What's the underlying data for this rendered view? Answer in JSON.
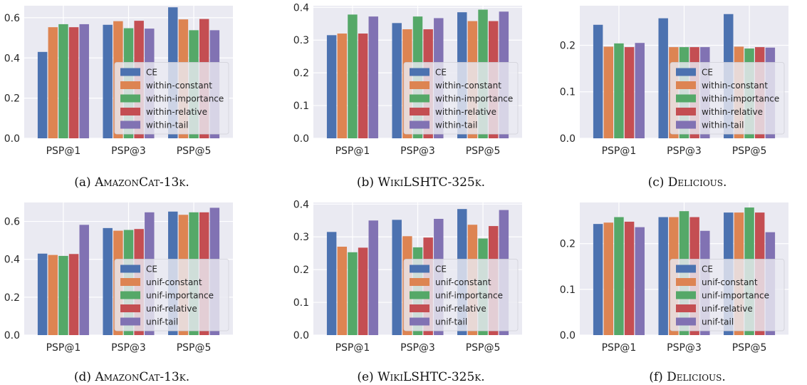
{
  "colors": {
    "CE": "#4c72b0",
    "constant": "#dd8452",
    "importance": "#55a868",
    "relative": "#c44e52",
    "tail": "#8172b3",
    "plot_background": "#eaeaf2",
    "grid": "#ffffff"
  },
  "chart_data": [
    {
      "type": "bar",
      "caption_prefix": "(a) ",
      "caption_name": "AmazonCat-13k",
      "caption_suffix": ".",
      "categories": [
        "PSP@1",
        "PSP@3",
        "PSP@5"
      ],
      "ylim": [
        0,
        0.66
      ],
      "yticks": [
        "0.0",
        "0.2",
        "0.4",
        "0.6"
      ],
      "legend_position": "lower-right",
      "series": [
        {
          "name": "CE",
          "values": [
            0.43,
            0.565,
            0.652
          ]
        },
        {
          "name": "within-constant",
          "values": [
            0.553,
            0.583,
            0.592
          ]
        },
        {
          "name": "within-importance",
          "values": [
            0.568,
            0.548,
            0.538
          ]
        },
        {
          "name": "within-relative",
          "values": [
            0.553,
            0.585,
            0.594
          ]
        },
        {
          "name": "within-tail",
          "values": [
            0.568,
            0.546,
            0.538
          ]
        }
      ]
    },
    {
      "type": "bar",
      "caption_prefix": "(b) ",
      "caption_name": "WikiLSHTC-325k",
      "caption_suffix": ".",
      "categories": [
        "PSP@1",
        "PSP@3",
        "PSP@5"
      ],
      "ylim": [
        0,
        0.405
      ],
      "yticks": [
        "0.0",
        "0.1",
        "0.2",
        "0.3",
        "0.4"
      ],
      "legend_position": "lower-right",
      "series": [
        {
          "name": "CE",
          "values": [
            0.315,
            0.352,
            0.385
          ]
        },
        {
          "name": "within-constant",
          "values": [
            0.32,
            0.333,
            0.358
          ]
        },
        {
          "name": "within-importance",
          "values": [
            0.378,
            0.372,
            0.393
          ]
        },
        {
          "name": "within-relative",
          "values": [
            0.32,
            0.333,
            0.358
          ]
        },
        {
          "name": "within-tail",
          "values": [
            0.372,
            0.367,
            0.387
          ]
        }
      ]
    },
    {
      "type": "bar",
      "caption_prefix": "(c) ",
      "caption_name": "Delicious",
      "caption_suffix": ".",
      "categories": [
        "PSP@1",
        "PSP@3",
        "PSP@5"
      ],
      "ylim": [
        0,
        0.285
      ],
      "yticks": [
        "0.0",
        "0.1",
        "0.2"
      ],
      "legend_position": "lower-right",
      "series": [
        {
          "name": "CE",
          "values": [
            0.244,
            0.258,
            0.267
          ]
        },
        {
          "name": "within-constant",
          "values": [
            0.197,
            0.196,
            0.197
          ]
        },
        {
          "name": "within-importance",
          "values": [
            0.204,
            0.196,
            0.193
          ]
        },
        {
          "name": "within-relative",
          "values": [
            0.196,
            0.196,
            0.196
          ]
        },
        {
          "name": "within-tail",
          "values": [
            0.205,
            0.196,
            0.195
          ]
        }
      ]
    },
    {
      "type": "bar",
      "caption_prefix": "(d) ",
      "caption_name": "AmazonCat-13k",
      "caption_suffix": ".",
      "categories": [
        "PSP@1",
        "PSP@3",
        "PSP@5"
      ],
      "ylim": [
        0,
        0.7
      ],
      "yticks": [
        "0.0",
        "0.2",
        "0.4",
        "0.6"
      ],
      "legend_position": "lower-right",
      "series": [
        {
          "name": "CE",
          "values": [
            0.43,
            0.565,
            0.652
          ]
        },
        {
          "name": "unif-constant",
          "values": [
            0.423,
            0.551,
            0.635
          ]
        },
        {
          "name": "unif-importance",
          "values": [
            0.418,
            0.555,
            0.648
          ]
        },
        {
          "name": "unif-relative",
          "values": [
            0.428,
            0.56,
            0.648
          ]
        },
        {
          "name": "unif-tail",
          "values": [
            0.582,
            0.648,
            0.672
          ]
        }
      ]
    },
    {
      "type": "bar",
      "caption_prefix": "(e) ",
      "caption_name": "WikiLSHTC-325k",
      "caption_suffix": ".",
      "categories": [
        "PSP@1",
        "PSP@3",
        "PSP@5"
      ],
      "ylim": [
        0,
        0.405
      ],
      "yticks": [
        "0.0",
        "0.1",
        "0.2",
        "0.3",
        "0.4"
      ],
      "legend_position": "lower-right",
      "series": [
        {
          "name": "CE",
          "values": [
            0.315,
            0.352,
            0.385
          ]
        },
        {
          "name": "unif-constant",
          "values": [
            0.27,
            0.302,
            0.337
          ]
        },
        {
          "name": "unif-importance",
          "values": [
            0.253,
            0.268,
            0.295
          ]
        },
        {
          "name": "unif-relative",
          "values": [
            0.267,
            0.298,
            0.333
          ]
        },
        {
          "name": "unif-tail",
          "values": [
            0.35,
            0.355,
            0.382
          ]
        }
      ]
    },
    {
      "type": "bar",
      "caption_prefix": "(f) ",
      "caption_name": "Delicious",
      "caption_suffix": ".",
      "categories": [
        "PSP@1",
        "PSP@3",
        "PSP@5"
      ],
      "ylim": [
        0,
        0.29
      ],
      "yticks": [
        "0.0",
        "0.1",
        "0.2"
      ],
      "legend_position": "lower-right",
      "series": [
        {
          "name": "CE",
          "values": [
            0.243,
            0.258,
            0.268
          ]
        },
        {
          "name": "unif-constant",
          "values": [
            0.246,
            0.258,
            0.268
          ]
        },
        {
          "name": "unif-importance",
          "values": [
            0.258,
            0.271,
            0.279
          ]
        },
        {
          "name": "unif-relative",
          "values": [
            0.248,
            0.258,
            0.268
          ]
        },
        {
          "name": "unif-tail",
          "values": [
            0.236,
            0.228,
            0.225
          ]
        }
      ]
    }
  ]
}
